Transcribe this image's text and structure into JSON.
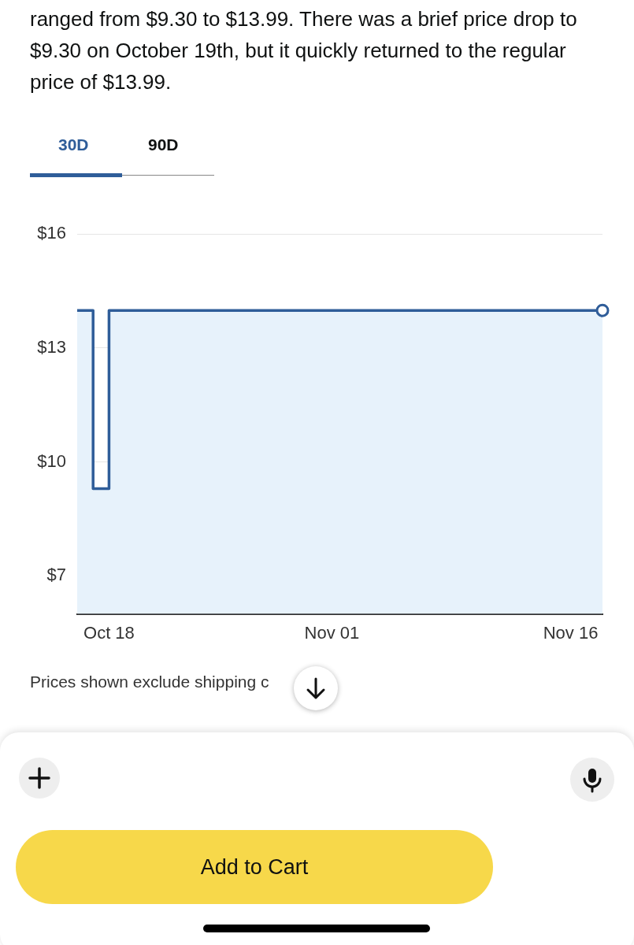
{
  "chart_data": {
    "type": "step",
    "subtitle": "ranged from $9.30 to $13.99. There was a brief price drop to $9.30 on October 19th, but it quickly returned to the regular price of $13.99.",
    "x": [
      "--10-16",
      "--10-17",
      "--10-18",
      "--11-18"
    ],
    "series": [
      {
        "type": "step",
        "color": "#2f5d99",
        "values": [
          13.99,
          9.3,
          13.99,
          13.99
        ]
      },
      {
        "type": "area",
        "color": "#e7f2fb",
        "values": [
          13.99,
          9.3,
          13.99,
          13.99
        ]
      }
    ],
    "xlim": [
      "--10-16",
      "--11-18"
    ],
    "xticks": [
      {
        "value": "--10-18",
        "label": "Oct 18"
      },
      {
        "value": "--11-01",
        "label": "Nov 01"
      },
      {
        "value": "--11-16",
        "label": "Nov 16"
      }
    ],
    "ylim": [
      6,
      16
    ],
    "yticks": [
      {
        "value": 7,
        "label": "$7"
      },
      {
        "value": 10,
        "label": "$10"
      },
      {
        "value": 13,
        "label": "$13"
      },
      {
        "value": 16,
        "label": "$16"
      }
    ],
    "grid": "y",
    "legend": false,
    "annotations": [
      "30D",
      "90D",
      "Prices shown exclude shipping c",
      "Add to Cart"
    ]
  }
}
